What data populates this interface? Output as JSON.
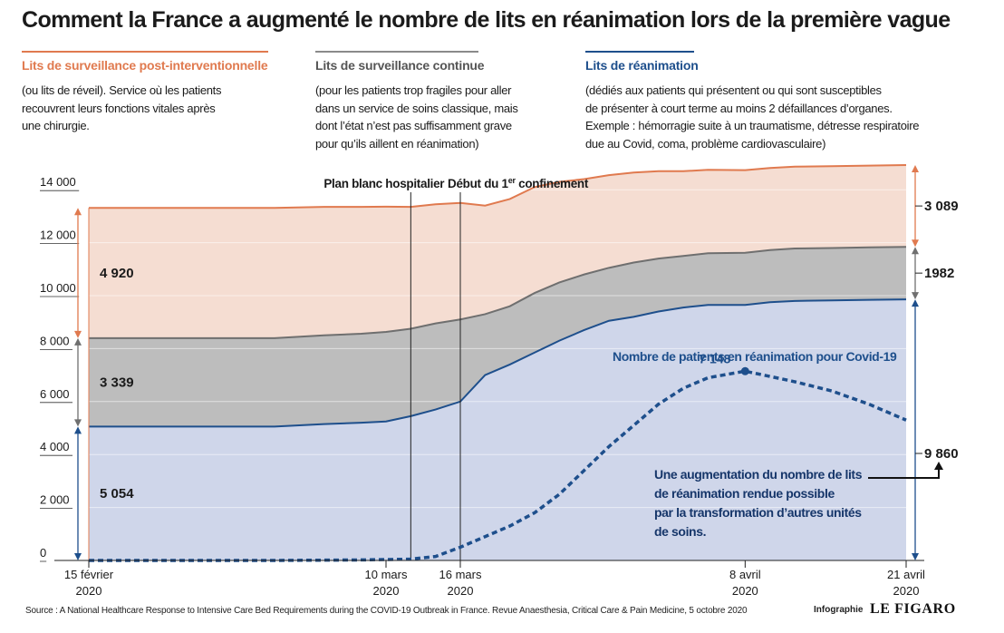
{
  "title": "Comment la France a augmenté le nombre de lits en réanimation lors de la première vague",
  "categories": [
    {
      "title": "Lits de surveillance post-interventionnelle",
      "description": "(ou lits de réveil). Service où les patients\nrecouvrent leurs fonctions vitales après\nune chirurgie.",
      "color": "#e07a4f"
    },
    {
      "title": "Lits de surveillance continue",
      "description": "(pour les patients trop fragiles pour aller\ndans un service de soins classique, mais\ndont l’état n’est pas suffisamment grave\npour qu’ils aillent en réanimation)",
      "color": "#8a8a8a"
    },
    {
      "title": "Lits de réanimation",
      "description": "(dédiés aux patients qui présentent ou qui sont susceptibles\nde présenter à court terme au moins 2 défaillances d’organes.\nExemple : hémorragie suite à un traumatisme, détresse respiratoire\ndue au Covid, coma, problème cardiovasculaire)",
      "color": "#1e4f8c"
    }
  ],
  "chart_data": {
    "type": "area",
    "stacked": true,
    "x": [
      "2020-02-15",
      "2020-02-20",
      "2020-02-25",
      "2020-03-01",
      "2020-03-05",
      "2020-03-08",
      "2020-03-10",
      "2020-03-12",
      "2020-03-14",
      "2020-03-16",
      "2020-03-18",
      "2020-03-20",
      "2020-03-22",
      "2020-03-24",
      "2020-03-26",
      "2020-03-28",
      "2020-03-30",
      "2020-04-01",
      "2020-04-03",
      "2020-04-05",
      "2020-04-08",
      "2020-04-10",
      "2020-04-12",
      "2020-04-15",
      "2020-04-18",
      "2020-04-21"
    ],
    "series": [
      {
        "name": "Lits de réanimation",
        "color": "#1e4f8c",
        "fill": "#cfd6ea",
        "values": [
          5054,
          5054,
          5054,
          5054,
          5150,
          5200,
          5250,
          5450,
          5700,
          6000,
          7000,
          7400,
          7850,
          8300,
          8700,
          9050,
          9200,
          9400,
          9550,
          9650,
          9650,
          9750,
          9800,
          9820,
          9840,
          9860
        ]
      },
      {
        "name": "Lits de surveillance continue",
        "color": "#6f6f6f",
        "fill": "#bdbdbd",
        "values": [
          3339,
          3339,
          3339,
          3339,
          3350,
          3360,
          3380,
          3300,
          3250,
          3100,
          2300,
          2200,
          2250,
          2200,
          2100,
          2000,
          2050,
          2000,
          1950,
          1950,
          1970,
          1970,
          1980,
          1980,
          1982,
          1982
        ]
      },
      {
        "name": "Lits de surveillance post-interventionnelle",
        "color": "#e07a4f",
        "fill": "#f5ddd2",
        "values": [
          4920,
          4920,
          4920,
          4920,
          4850,
          4790,
          4730,
          4600,
          4500,
          4400,
          4100,
          4050,
          4000,
          3800,
          3600,
          3500,
          3400,
          3300,
          3200,
          3150,
          3120,
          3100,
          3090,
          3090,
          3089,
          3089
        ]
      }
    ],
    "covid": {
      "name": "Nombre de patients en réanimation pour Covid-19",
      "color": "#1e4f8c",
      "x": [
        "2020-02-15",
        "2020-03-01",
        "2020-03-08",
        "2020-03-12",
        "2020-03-14",
        "2020-03-16",
        "2020-03-18",
        "2020-03-20",
        "2020-03-22",
        "2020-03-24",
        "2020-03-26",
        "2020-03-28",
        "2020-03-30",
        "2020-04-01",
        "2020-04-03",
        "2020-04-05",
        "2020-04-08",
        "2020-04-10",
        "2020-04-12",
        "2020-04-15",
        "2020-04-18",
        "2020-04-21"
      ],
      "values": [
        0,
        0,
        20,
        50,
        150,
        500,
        900,
        1300,
        1800,
        2500,
        3400,
        4300,
        5100,
        5900,
        6500,
        6900,
        7148,
        6950,
        6750,
        6400,
        5900,
        5300
      ],
      "peak_label": "7 148"
    },
    "events": [
      {
        "x": "2020-03-12",
        "label": "Plan blanc hospitalier"
      },
      {
        "x": "2020-03-16",
        "label": "Début du 1",
        "label_sup": "er",
        "label_rest": " confinement"
      }
    ],
    "start_values": {
      "reanimation": "5 054",
      "continue": "3 339",
      "post_interventionnelle": "4 920"
    },
    "end_values": {
      "post_interventionnelle": "3 089",
      "continue": "1982",
      "reanimation": "9 860"
    },
    "yticks": [
      0,
      2000,
      4000,
      6000,
      8000,
      10000,
      12000,
      14000
    ],
    "ytick_labels": [
      "0",
      "2 000",
      "4 000",
      "6 000",
      "8 000",
      "10 000",
      "12 000",
      "14 000"
    ],
    "ylim": [
      0,
      15000
    ],
    "xlim": [
      "2020-02-15",
      "2020-04-21"
    ],
    "xticks": [
      {
        "x": "2020-02-15",
        "line1": "15 février",
        "line2": "2020"
      },
      {
        "x": "2020-03-10",
        "line1": "10 mars",
        "line2": "2020"
      },
      {
        "x": "2020-03-16",
        "line1": "16 mars",
        "line2": "2020"
      },
      {
        "x": "2020-04-08",
        "line1": "8 avril",
        "line2": "2020"
      },
      {
        "x": "2020-04-21",
        "line1": "21 avril",
        "line2": "2020"
      }
    ],
    "annotation": "Une augmentation du nombre de lits\nde réanimation rendue possible\npar la transformation d’autres unités\nde soins."
  },
  "footer": {
    "source": "Source : A National Healthcare Response to Intensive Care Bed Requirements during the COVID-19 Outbreak in France. Revue Anaesthesia, Critical Care & Pain Medicine, 5 octobre 2020",
    "credit_label": "Infographie",
    "credit_brand": "LE FIGARO"
  }
}
